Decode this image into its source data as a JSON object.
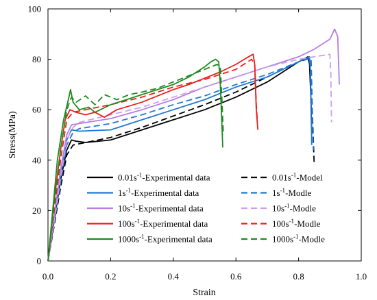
{
  "chart_data": {
    "type": "line",
    "xlabel": "Strain",
    "ylabel": "Stress(MPa)",
    "xlim": [
      0.0,
      1.0
    ],
    "ylim": [
      0,
      100
    ],
    "x_ticks": [
      0.0,
      0.2,
      0.4,
      0.6,
      0.8,
      1.0
    ],
    "x_tick_labels": [
      "0.0",
      "0.2",
      "0.4",
      "0.6",
      "0.8",
      "1.0"
    ],
    "y_ticks": [
      0,
      20,
      40,
      60,
      80,
      100
    ],
    "y_tick_labels": [
      "0",
      "20",
      "40",
      "60",
      "80",
      "100"
    ],
    "legend_position": "center-bottom",
    "series": [
      {
        "rate": "0.01s",
        "sup": "-1",
        "suffix": "-Experimental data",
        "color": "#000000",
        "dash": "solid",
        "points": [
          [
            0.0,
            0
          ],
          [
            0.02,
            16
          ],
          [
            0.04,
            32
          ],
          [
            0.06,
            44
          ],
          [
            0.075,
            48
          ],
          [
            0.09,
            47.5
          ],
          [
            0.12,
            47
          ],
          [
            0.2,
            48
          ],
          [
            0.3,
            52
          ],
          [
            0.4,
            56
          ],
          [
            0.5,
            60
          ],
          [
            0.6,
            65
          ],
          [
            0.7,
            71
          ],
          [
            0.8,
            79
          ],
          [
            0.83,
            81
          ],
          [
            0.835,
            78
          ],
          [
            0.84,
            62
          ],
          [
            0.842,
            50
          ]
        ]
      },
      {
        "rate": "0.01s",
        "sup": "-1",
        "suffix": "-Model",
        "color": "#000000",
        "dash": "dashed",
        "points": [
          [
            0.0,
            0
          ],
          [
            0.02,
            14
          ],
          [
            0.04,
            29
          ],
          [
            0.06,
            42
          ],
          [
            0.08,
            46
          ],
          [
            0.1,
            46.5
          ],
          [
            0.2,
            49
          ],
          [
            0.3,
            53
          ],
          [
            0.4,
            57.5
          ],
          [
            0.5,
            62
          ],
          [
            0.6,
            67
          ],
          [
            0.7,
            73
          ],
          [
            0.8,
            79
          ],
          [
            0.835,
            80.5
          ],
          [
            0.84,
            74
          ],
          [
            0.845,
            55
          ],
          [
            0.85,
            38
          ]
        ]
      },
      {
        "rate": "1s",
        "sup": "-1",
        "suffix": "-Experimental data",
        "color": "#1f77d4",
        "dash": "solid",
        "points": [
          [
            0.0,
            0
          ],
          [
            0.02,
            17
          ],
          [
            0.04,
            34
          ],
          [
            0.06,
            48
          ],
          [
            0.075,
            52
          ],
          [
            0.1,
            51.5
          ],
          [
            0.2,
            52
          ],
          [
            0.3,
            56
          ],
          [
            0.4,
            60
          ],
          [
            0.5,
            64
          ],
          [
            0.6,
            69
          ],
          [
            0.7,
            73
          ],
          [
            0.8,
            79
          ],
          [
            0.835,
            81
          ],
          [
            0.838,
            75
          ],
          [
            0.84,
            58
          ],
          [
            0.842,
            46
          ]
        ]
      },
      {
        "rate": "1s",
        "sup": "-1",
        "suffix": "-Modle",
        "color": "#1f77d4",
        "dash": "dashed",
        "points": [
          [
            0.0,
            0
          ],
          [
            0.02,
            15
          ],
          [
            0.04,
            31
          ],
          [
            0.06,
            46
          ],
          [
            0.08,
            51
          ],
          [
            0.1,
            52.5
          ],
          [
            0.2,
            54.5
          ],
          [
            0.3,
            58
          ],
          [
            0.4,
            62
          ],
          [
            0.5,
            65.5
          ],
          [
            0.6,
            70
          ],
          [
            0.7,
            74
          ],
          [
            0.8,
            79
          ],
          [
            0.84,
            80.5
          ],
          [
            0.842,
            70
          ],
          [
            0.845,
            52
          ],
          [
            0.847,
            44
          ]
        ]
      },
      {
        "rate": "10s",
        "sup": "-1",
        "suffix": "-Experimental data",
        "color": "#b77de0",
        "dash": "solid",
        "points": [
          [
            0.0,
            0
          ],
          [
            0.02,
            18
          ],
          [
            0.04,
            36
          ],
          [
            0.06,
            50
          ],
          [
            0.075,
            54
          ],
          [
            0.1,
            54.5
          ],
          [
            0.2,
            56.5
          ],
          [
            0.3,
            60
          ],
          [
            0.4,
            64
          ],
          [
            0.5,
            69
          ],
          [
            0.6,
            73
          ],
          [
            0.7,
            77
          ],
          [
            0.8,
            81
          ],
          [
            0.85,
            84
          ],
          [
            0.9,
            88
          ],
          [
            0.915,
            92
          ],
          [
            0.925,
            89
          ],
          [
            0.93,
            70
          ]
        ]
      },
      {
        "rate": "10s",
        "sup": "-1",
        "suffix": "-Modle",
        "color": "#c9a0ea",
        "dash": "dashed",
        "points": [
          [
            0.0,
            0
          ],
          [
            0.02,
            16
          ],
          [
            0.04,
            33
          ],
          [
            0.06,
            48
          ],
          [
            0.08,
            53
          ],
          [
            0.1,
            55
          ],
          [
            0.2,
            58
          ],
          [
            0.3,
            61
          ],
          [
            0.4,
            65
          ],
          [
            0.5,
            69
          ],
          [
            0.6,
            73
          ],
          [
            0.7,
            77
          ],
          [
            0.8,
            80
          ],
          [
            0.9,
            82
          ],
          [
            0.903,
            74
          ],
          [
            0.905,
            55
          ]
        ]
      },
      {
        "rate": "100s",
        "sup": "-1",
        "suffix": "-Experimental data",
        "color": "#ee1c1c",
        "dash": "solid",
        "points": [
          [
            0.0,
            0
          ],
          [
            0.02,
            24
          ],
          [
            0.04,
            44
          ],
          [
            0.055,
            56
          ],
          [
            0.07,
            60
          ],
          [
            0.09,
            59
          ],
          [
            0.12,
            58
          ],
          [
            0.15,
            59
          ],
          [
            0.18,
            57
          ],
          [
            0.22,
            60
          ],
          [
            0.3,
            63
          ],
          [
            0.4,
            68
          ],
          [
            0.45,
            70
          ],
          [
            0.5,
            72.5
          ],
          [
            0.55,
            75
          ],
          [
            0.6,
            78
          ],
          [
            0.64,
            81
          ],
          [
            0.655,
            82
          ],
          [
            0.66,
            78
          ],
          [
            0.665,
            60
          ],
          [
            0.67,
            52
          ]
        ]
      },
      {
        "rate": "100s",
        "sup": "-1",
        "suffix": "-Modle",
        "color": "#ee1c1c",
        "dash": "dashed",
        "points": [
          [
            0.0,
            0
          ],
          [
            0.02,
            20
          ],
          [
            0.04,
            40
          ],
          [
            0.06,
            56
          ],
          [
            0.08,
            59
          ],
          [
            0.1,
            59.5
          ],
          [
            0.2,
            62
          ],
          [
            0.3,
            65
          ],
          [
            0.4,
            69
          ],
          [
            0.5,
            72
          ],
          [
            0.6,
            76
          ],
          [
            0.65,
            80
          ],
          [
            0.66,
            78
          ],
          [
            0.665,
            62
          ],
          [
            0.668,
            56
          ]
        ]
      },
      {
        "rate": "1000s",
        "sup": "-1",
        "suffix": "-Experimental data",
        "color": "#1f8a1f",
        "dash": "solid",
        "points": [
          [
            0.0,
            0
          ],
          [
            0.015,
            20
          ],
          [
            0.03,
            40
          ],
          [
            0.05,
            56
          ],
          [
            0.065,
            64
          ],
          [
            0.072,
            68
          ],
          [
            0.08,
            63
          ],
          [
            0.1,
            60
          ],
          [
            0.13,
            61
          ],
          [
            0.15,
            59
          ],
          [
            0.2,
            62
          ],
          [
            0.25,
            64
          ],
          [
            0.3,
            66
          ],
          [
            0.35,
            68
          ],
          [
            0.4,
            70
          ],
          [
            0.45,
            73
          ],
          [
            0.5,
            77
          ],
          [
            0.52,
            79
          ],
          [
            0.535,
            80
          ],
          [
            0.545,
            79
          ],
          [
            0.55,
            70
          ],
          [
            0.555,
            55
          ],
          [
            0.558,
            45
          ]
        ]
      },
      {
        "rate": "1000s",
        "sup": "-1",
        "suffix": "-Modle",
        "color": "#1f8a1f",
        "dash": "dashed",
        "points": [
          [
            0.0,
            0
          ],
          [
            0.02,
            22
          ],
          [
            0.04,
            44
          ],
          [
            0.06,
            60
          ],
          [
            0.075,
            65
          ],
          [
            0.09,
            63
          ],
          [
            0.12,
            65.5
          ],
          [
            0.15,
            62
          ],
          [
            0.18,
            66
          ],
          [
            0.22,
            64
          ],
          [
            0.26,
            66
          ],
          [
            0.3,
            67
          ],
          [
            0.35,
            68.5
          ],
          [
            0.4,
            71
          ],
          [
            0.45,
            73.5
          ],
          [
            0.5,
            76
          ],
          [
            0.54,
            78
          ],
          [
            0.55,
            77
          ],
          [
            0.555,
            65
          ],
          [
            0.56,
            50
          ]
        ]
      }
    ]
  }
}
